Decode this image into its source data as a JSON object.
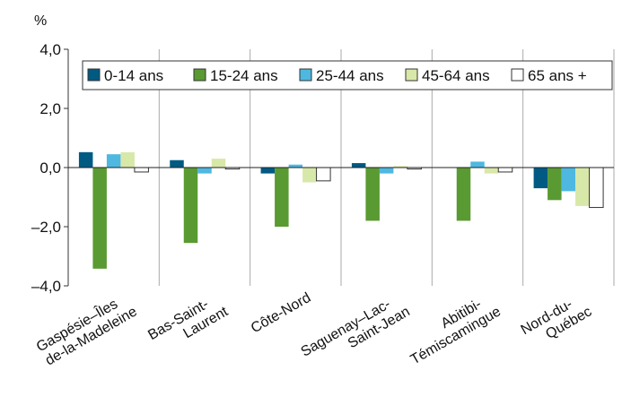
{
  "chart_data": {
    "type": "bar",
    "y_label": "%",
    "categories": [
      "Gaspésie–Îles\nde-la-Madeleine",
      "Bas-Saint-\nLaurent",
      "Côte-Nord",
      "Saguenay–Lac-\nSaint-Jean",
      "Abitibi-\nTémiscamingue",
      "Nord-du-\nQuébec"
    ],
    "series": [
      {
        "name": "0-14 ans",
        "color": "#005a82",
        "values": [
          0.52,
          0.25,
          -0.2,
          0.15,
          0,
          -0.7
        ]
      },
      {
        "name": "15-24 ans",
        "color": "#5a9a32",
        "values": [
          -3.42,
          -2.55,
          -2.0,
          -1.8,
          -1.8,
          -1.1
        ]
      },
      {
        "name": "25-44 ans",
        "color": "#4fb8e0",
        "values": [
          0.45,
          -0.2,
          0.1,
          -0.2,
          0.2,
          -0.8
        ]
      },
      {
        "name": "45-64 ans",
        "color": "#d8e8a8",
        "values": [
          0.52,
          0.3,
          -0.5,
          0.05,
          -0.2,
          -1.3
        ]
      },
      {
        "name": "65 ans +",
        "color": "#ffffff",
        "values": [
          -0.15,
          -0.05,
          -0.45,
          -0.05,
          -0.15,
          -1.35
        ]
      }
    ],
    "ylim": [
      -4,
      4
    ],
    "yticks": [
      {
        "value": -4,
        "label": "–4,0"
      },
      {
        "value": -2,
        "label": "–2,0"
      },
      {
        "value": 0,
        "label": "0,0"
      },
      {
        "value": 2,
        "label": "2,0"
      },
      {
        "value": 4,
        "label": "4,0"
      }
    ],
    "legend": "top"
  }
}
